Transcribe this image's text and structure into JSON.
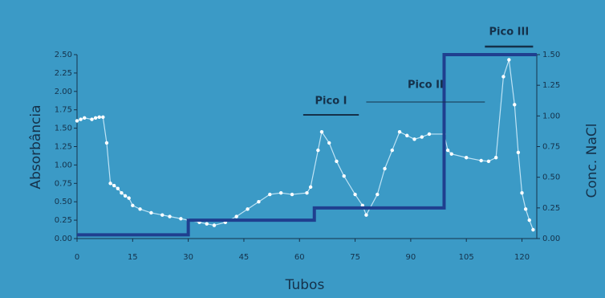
{
  "chart_data": {
    "type": "line",
    "xlabel": "Tubos",
    "ylabel": "Absorbância",
    "y2label": "Conc. NaCl",
    "annotations": [
      "Pico I",
      "Pico II",
      "Pico III"
    ],
    "xlim": [
      0,
      124
    ],
    "xticks": [
      0,
      15,
      30,
      45,
      60,
      75,
      90,
      105,
      120
    ],
    "ylim": [
      0,
      2.5
    ],
    "yticks": [
      {
        "value": 0,
        "label": "0.00"
      },
      {
        "value": 0.25,
        "label": "0.25"
      },
      {
        "value": 0.5,
        "label": "0.50"
      },
      {
        "value": 0.75,
        "label": "0.75"
      },
      {
        "value": 1,
        "label": "1.00"
      },
      {
        "value": 1.25,
        "label": "1.25"
      },
      {
        "value": 1.5,
        "label": "1.50"
      },
      {
        "value": 1.75,
        "label": "1.75"
      },
      {
        "value": 2,
        "label": "2.00"
      },
      {
        "value": 2.25,
        "label": "2.25"
      },
      {
        "value": 2.5,
        "label": "2.50"
      }
    ],
    "y2lim": [
      0,
      1.5
    ],
    "y2ticks": [
      {
        "value": 0,
        "label": "0.00"
      },
      {
        "value": 0.25,
        "label": "0.25"
      },
      {
        "value": 0.5,
        "label": "0.50"
      },
      {
        "value": 0.75,
        "label": "0.75"
      },
      {
        "value": 1,
        "label": "1.00"
      },
      {
        "value": 1.25,
        "label": "1.25"
      },
      {
        "value": 1.5,
        "label": "1.50"
      }
    ],
    "series": [
      {
        "color": "#ffffff",
        "x": [
          0,
          1,
          2,
          4,
          5,
          6,
          7,
          8,
          9,
          10,
          11,
          12,
          13,
          14,
          15,
          17,
          20,
          23,
          25,
          28,
          30,
          33,
          35,
          37,
          40,
          43,
          46,
          49,
          52,
          55,
          58,
          62,
          63,
          65,
          66,
          68,
          70,
          72,
          75,
          77,
          78,
          81,
          83,
          85,
          87,
          89,
          91,
          93,
          95,
          99,
          100,
          101,
          105,
          109,
          111,
          113,
          115,
          116.5,
          118,
          119,
          120,
          121,
          122,
          123
        ],
        "values": [
          1.6,
          1.62,
          1.64,
          1.62,
          1.64,
          1.65,
          1.65,
          1.3,
          0.75,
          0.72,
          0.68,
          0.62,
          0.58,
          0.55,
          0.45,
          0.4,
          0.35,
          0.32,
          0.3,
          0.27,
          0.25,
          0.22,
          0.2,
          0.18,
          0.22,
          0.3,
          0.4,
          0.5,
          0.6,
          0.62,
          0.6,
          0.62,
          0.7,
          1.2,
          1.45,
          1.3,
          1.05,
          0.85,
          0.6,
          0.45,
          0.32,
          0.6,
          0.95,
          1.2,
          1.45,
          1.4,
          1.35,
          1.38,
          1.42,
          1.42,
          1.2,
          1.15,
          1.1,
          1.06,
          1.05,
          1.1,
          2.2,
          2.43,
          1.82,
          1.17,
          0.62,
          0.4,
          0.25,
          0.12
        ]
      },
      {
        "color": "#1f3f8f",
        "axis": "y2",
        "x": [
          0,
          30,
          30,
          64,
          64,
          99,
          99,
          124
        ],
        "values": [
          0.03,
          0.03,
          0.15,
          0.15,
          0.25,
          0.25,
          1.5,
          1.5
        ]
      }
    ]
  }
}
